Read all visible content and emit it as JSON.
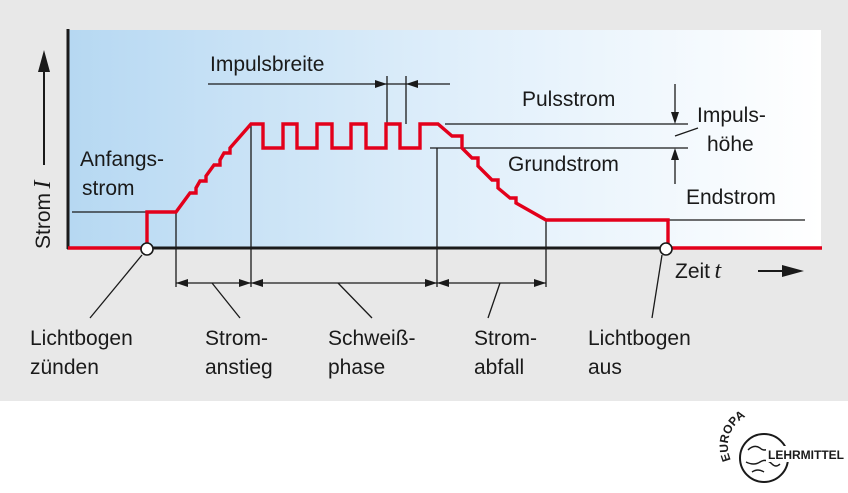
{
  "labels": {
    "y_axis": "Strom",
    "y_symbol": "I",
    "x_axis": "Zeit",
    "x_symbol": "t",
    "impulsbreite": "Impulsbreite",
    "pulsstrom": "Pulsstrom",
    "impulshoehe_1": "Impuls-",
    "impulshoehe_2": "höhe",
    "grundstrom": "Grundstrom",
    "anfangsstrom_1": "Anfangs-",
    "anfangsstrom_2": "strom",
    "endstrom": "Endstrom",
    "lichtbogen_zuenden_1": "Lichtbogen",
    "lichtbogen_zuenden_2": "zünden",
    "stromanstieg_1": "Strom-",
    "stromanstieg_2": "anstieg",
    "schweissphase_1": "Schweiß-",
    "schweissphase_2": "phase",
    "stromabfall_1": "Strom-",
    "stromabfall_2": "abfall",
    "lichtbogen_aus_1": "Lichtbogen",
    "lichtbogen_aus_2": "aus"
  },
  "logo": {
    "top": "EUROPA",
    "right": "LEHRMITTEL"
  },
  "colors": {
    "curve": "#e3001b",
    "panel": "#e8e8e8",
    "plot_gradient_start": "#b6d8f2",
    "plot_gradient_end": "#ffffff"
  }
}
